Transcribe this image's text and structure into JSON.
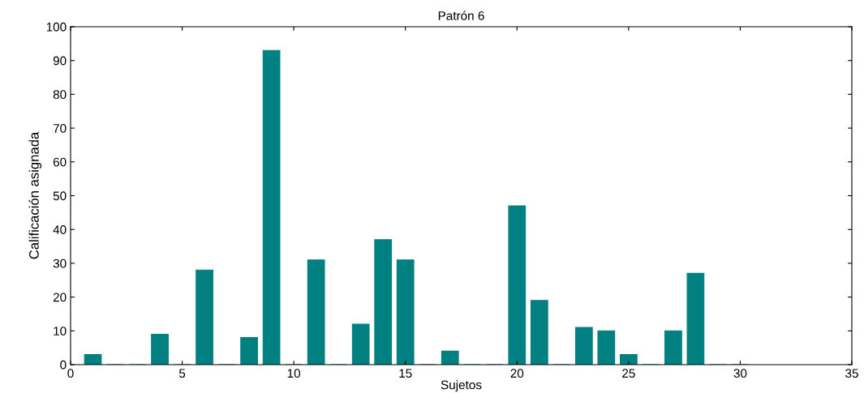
{
  "chart_data": {
    "type": "bar",
    "title": "Patrón 6",
    "xlabel": "Sujetos",
    "ylabel": "Calificación asignada",
    "x": [
      1,
      2,
      3,
      4,
      5,
      6,
      7,
      8,
      9,
      10,
      11,
      12,
      13,
      14,
      15,
      16,
      17,
      18,
      19,
      20,
      21,
      22,
      23,
      24,
      25,
      26,
      27,
      28,
      29,
      30
    ],
    "values": [
      3,
      0,
      0,
      9,
      0,
      28,
      0,
      8,
      93,
      0,
      31,
      0,
      12,
      37,
      31,
      0,
      4,
      0,
      0,
      47,
      19,
      0,
      11,
      10,
      3,
      0,
      10,
      27,
      0,
      0
    ],
    "color": "#008080",
    "xlim": [
      0,
      35
    ],
    "xticks": [
      0,
      5,
      10,
      15,
      20,
      25,
      30,
      35
    ],
    "ylim": [
      0,
      100
    ],
    "yticks": [
      0,
      10,
      20,
      30,
      40,
      50,
      60,
      70,
      80,
      90,
      100
    ],
    "grid": false
  }
}
